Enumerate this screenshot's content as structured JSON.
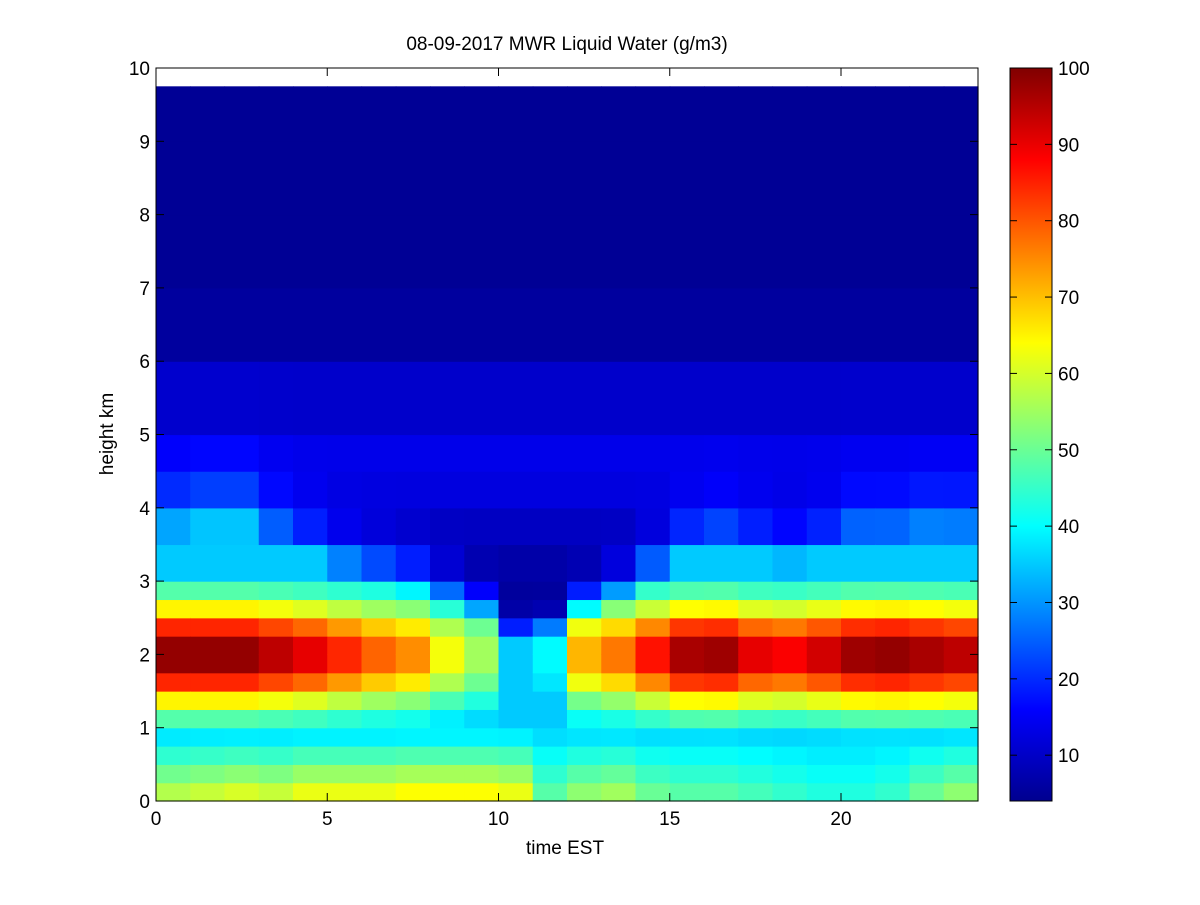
{
  "chart_data": {
    "type": "heatmap",
    "title": "08-09-2017 MWR Liquid Water (g/m3)",
    "xlabel": "time EST",
    "ylabel": "height km",
    "xlim": [
      0,
      24
    ],
    "ylim": [
      0,
      10
    ],
    "x_ticks": [
      0,
      5,
      10,
      15,
      20
    ],
    "x_tick_labels": [
      "0",
      "5",
      "10",
      "15",
      "20"
    ],
    "y_ticks": [
      0,
      1,
      2,
      3,
      4,
      5,
      6,
      7,
      8,
      9,
      10
    ],
    "y_tick_labels": [
      "0",
      "1",
      "2",
      "3",
      "4",
      "5",
      "6",
      "7",
      "8",
      "9",
      "10"
    ],
    "colormap": "jet",
    "clim": [
      4,
      100
    ],
    "colorbar_ticks": [
      10,
      20,
      30,
      40,
      50,
      60,
      70,
      80,
      90,
      100
    ],
    "colorbar_tick_labels": [
      "10",
      "20",
      "30",
      "40",
      "50",
      "60",
      "70",
      "80",
      "90",
      "100"
    ],
    "colorbar_location": "right",
    "grid": false,
    "cell_width_hours": 1,
    "x_centers": [
      0.5,
      1.5,
      2.5,
      3.5,
      4.5,
      5.5,
      6.5,
      7.5,
      8.5,
      9.5,
      10.5,
      11.5,
      12.5,
      13.5,
      14.5,
      15.5,
      16.5,
      17.5,
      18.5,
      19.5,
      20.5,
      21.5,
      22.5,
      23.5
    ],
    "height_levels_km": [
      0,
      0.25,
      0.5,
      0.75,
      1.0,
      1.25,
      1.5,
      1.75,
      2.0,
      2.25,
      2.5,
      2.75,
      3.0,
      3.5,
      4.0,
      4.5,
      5.0,
      6.0,
      7.0,
      8.0,
      9.0,
      9.75
    ],
    "column_params": [
      {
        "peak": 100,
        "ceiling": 4.2,
        "surface": 60
      },
      {
        "peak": 100,
        "ceiling": 4.3,
        "surface": 62
      },
      {
        "peak": 100,
        "ceiling": 4.3,
        "surface": 64
      },
      {
        "peak": 96,
        "ceiling": 4.0,
        "surface": 62
      },
      {
        "peak": 92,
        "ceiling": 3.8,
        "surface": 66
      },
      {
        "peak": 86,
        "ceiling": 3.6,
        "surface": 66
      },
      {
        "peak": 80,
        "ceiling": 3.5,
        "surface": 66
      },
      {
        "peak": 76,
        "ceiling": 3.4,
        "surface": 68
      },
      {
        "peak": 64,
        "ceiling": 3.2,
        "surface": 68
      },
      {
        "peak": 56,
        "ceiling": 3.0,
        "surface": 68
      },
      {
        "peak": 26,
        "ceiling": 2.6,
        "surface": 66
      },
      {
        "peak": 40,
        "ceiling": 2.4,
        "surface": 50
      },
      {
        "peak": 72,
        "ceiling": 3.0,
        "surface": 56
      },
      {
        "peak": 78,
        "ceiling": 3.2,
        "surface": 58
      },
      {
        "peak": 88,
        "ceiling": 3.5,
        "surface": 52
      },
      {
        "peak": 98,
        "ceiling": 3.8,
        "surface": 50
      },
      {
        "peak": 99,
        "ceiling": 3.9,
        "surface": 50
      },
      {
        "peak": 92,
        "ceiling": 3.8,
        "surface": 48
      },
      {
        "peak": 90,
        "ceiling": 3.7,
        "surface": 46
      },
      {
        "peak": 94,
        "ceiling": 3.8,
        "surface": 44
      },
      {
        "peak": 99,
        "ceiling": 4.0,
        "surface": 44
      },
      {
        "peak": 100,
        "ceiling": 4.0,
        "surface": 46
      },
      {
        "peak": 98,
        "ceiling": 4.1,
        "surface": 52
      },
      {
        "peak": 96,
        "ceiling": 4.1,
        "surface": 56
      }
    ]
  }
}
